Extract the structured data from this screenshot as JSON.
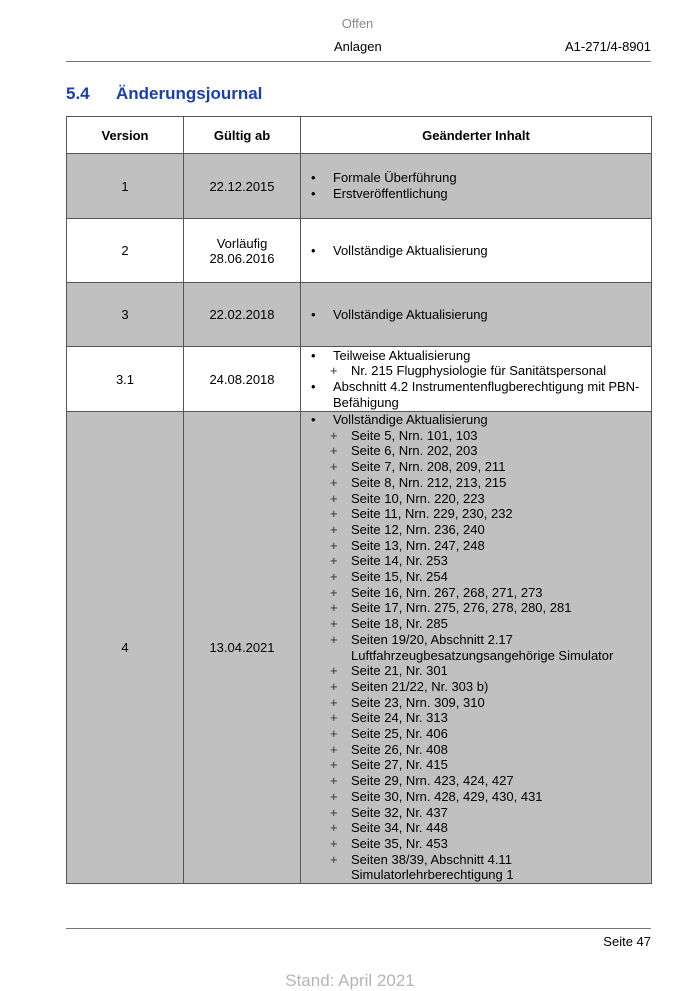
{
  "header": {
    "classification": "Offen",
    "section": "Anlagen",
    "doc_number": "A1-271/4-8901"
  },
  "heading": {
    "number": "5.4",
    "title": "Änderungsjournal"
  },
  "table": {
    "columns": [
      "Version",
      "Gültig ab",
      "Geänderter Inhalt"
    ],
    "rows": [
      {
        "version": "1",
        "date": [
          "22.12.2015"
        ],
        "shaded": true,
        "items": [
          {
            "text": "Formale Überführung",
            "sub": []
          },
          {
            "text": "Erstveröffentlichung",
            "sub": []
          }
        ]
      },
      {
        "version": "2",
        "date": [
          "Vorläufig",
          "28.06.2016"
        ],
        "shaded": false,
        "items": [
          {
            "text": "Vollständige Aktualisierung",
            "sub": []
          }
        ]
      },
      {
        "version": "3",
        "date": [
          "22.02.2018"
        ],
        "shaded": true,
        "items": [
          {
            "text": "Vollständige Aktualisierung",
            "sub": []
          }
        ]
      },
      {
        "version": "3.1",
        "date": [
          "24.08.2018"
        ],
        "shaded": false,
        "items": [
          {
            "text": "Teilweise Aktualisierung",
            "sub": [
              "Nr. 215 Flugphysiologie für Sanitätspersonal"
            ]
          },
          {
            "text": "Abschnitt 4.2 Instrumentenflugberechtigung mit PBN-Befähigung",
            "sub": []
          }
        ]
      },
      {
        "version": "4",
        "date": [
          "13.04.2021"
        ],
        "shaded": true,
        "items": [
          {
            "text": "Vollständige Aktualisierung",
            "sub": [
              "Seite 5, Nrn. 101, 103",
              "Seite 6, Nrn. 202, 203",
              "Seite 7, Nrn. 208, 209, 211",
              "Seite 8, Nrn. 212, 213, 215",
              "Seite 10, Nrn. 220, 223",
              "Seite 11, Nrn. 229, 230, 232",
              "Seite 12, Nrn. 236, 240",
              "Seite 13, Nrn. 247, 248",
              "Seite 14, Nr. 253",
              "Seite 15, Nr. 254",
              "Seite 16, Nrn. 267, 268, 271, 273",
              "Seite 17, Nrn. 275, 276, 278, 280, 281",
              "Seite 18, Nr. 285",
              "Seiten 19/20, Abschnitt 2.17 Luftfahrzeugbesatzungsangehörige Simulator",
              "Seite 21, Nr. 301",
              "Seiten 21/22, Nr. 303 b)",
              "Seite 23, Nrn. 309, 310",
              "Seite 24, Nr. 313",
              "Seite 25, Nr. 406",
              "Seite 26, Nr. 408",
              "Seite 27, Nr. 415",
              "Seite 29, Nrn. 423, 424, 427",
              "Seite 30, Nrn. 428, 429, 430, 431",
              "Seite 32, Nr. 437",
              "Seite 34, Nr. 448",
              "Seite 35, Nr. 453",
              "Seiten 38/39, Abschnitt 4.11 Simulatorlehrberechtigung 1"
            ]
          }
        ]
      }
    ]
  },
  "footer": {
    "page": "Seite 47",
    "stand": "Stand: April 2021"
  },
  "colors": {
    "heading": "#1a3fb0",
    "shaded_row": "#c0c0c0"
  },
  "glyphs": {
    "bullet": "•",
    "plus": "+"
  }
}
